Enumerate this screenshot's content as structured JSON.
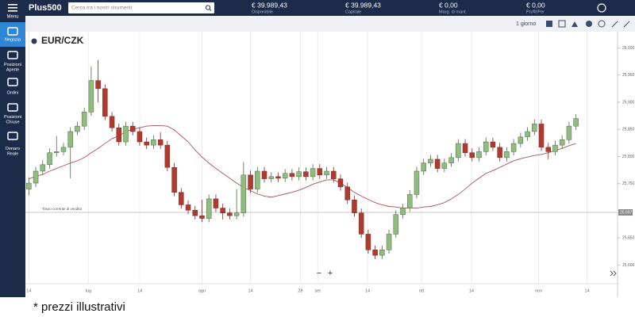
{
  "header": {
    "logo": "Plus500",
    "search_placeholder": "Cerca tra i nostri strumenti",
    "stats": [
      {
        "value": "€ 39.989,43",
        "label": "Disponibile"
      },
      {
        "value": "€ 39.989,43",
        "label": "Capitale"
      },
      {
        "value": "€ 0,00",
        "label": "Marg. di mant."
      },
      {
        "value": "€ 0,00",
        "label": "Profit/Per"
      }
    ]
  },
  "sidebar": {
    "menu": "Menu",
    "items": [
      "Negozia",
      "Posizioni Aperte",
      "Ordini",
      "Posizioni Chiuse",
      "Denaro Reale"
    ]
  },
  "toolbar": {
    "period": "1 giorno"
  },
  "zoom": {
    "minus": "−",
    "plus": "+"
  },
  "footnote": "* prezzi illustrativi",
  "chart_data": {
    "type": "candlestick",
    "title": "EUR/CZK",
    "up_color": "#8fbc7f",
    "down_color": "#b03a2e",
    "xlim": [
      -0.5,
      85
    ],
    "ylim": [
      25.57,
      26.03
    ],
    "grid_x": true,
    "xticks": [
      {
        "value": 0,
        "label": "14"
      },
      {
        "value": 8.6,
        "label": "lug"
      },
      {
        "value": 16,
        "label": "14"
      },
      {
        "value": 25,
        "label": "ago"
      },
      {
        "value": 32,
        "label": "14"
      },
      {
        "value": 39.2,
        "label": "28"
      },
      {
        "value": 41.7,
        "label": "set"
      },
      {
        "value": 48.9,
        "label": "14"
      },
      {
        "value": 56.7,
        "label": "ott"
      },
      {
        "value": 63.9,
        "label": "14"
      },
      {
        "value": 73.6,
        "label": "nov"
      },
      {
        "value": 80.6,
        "label": "14"
      }
    ],
    "yticks": [
      {
        "value": 25.6,
        "label": "25,600"
      },
      {
        "value": 25.65,
        "label": "25,650"
      },
      {
        "value": 25.75,
        "label": "25,750"
      },
      {
        "value": 25.8,
        "label": "25,800"
      },
      {
        "value": 25.85,
        "label": "25,850"
      },
      {
        "value": 25.9,
        "label": "25,900"
      },
      {
        "value": 25.95,
        "label": "25,950"
      },
      {
        "value": 26,
        "label": "26,000"
      }
    ],
    "current_price": {
      "value": 25.697,
      "label": "25,697",
      "name": "Tasso corrente di vendita"
    },
    "ohlc": [
      [
        25.74,
        25.762,
        25.728,
        25.751
      ],
      [
        25.751,
        25.781,
        25.744,
        25.773
      ],
      [
        25.773,
        25.793,
        25.766,
        25.785
      ],
      [
        25.785,
        25.815,
        25.778,
        25.807
      ],
      [
        25.807,
        25.838,
        25.8,
        25.809
      ],
      [
        25.809,
        25.825,
        25.802,
        25.817
      ],
      [
        25.817,
        25.854,
        25.76,
        25.846
      ],
      [
        25.846,
        25.864,
        25.839,
        25.856
      ],
      [
        25.856,
        25.89,
        25.849,
        25.882
      ],
      [
        25.882,
        25.966,
        25.875,
        25.94
      ],
      [
        25.94,
        25.978,
        25.9,
        25.925
      ],
      [
        25.925,
        25.933,
        25.867,
        25.874
      ],
      [
        25.874,
        25.882,
        25.846,
        25.853
      ],
      [
        25.853,
        25.861,
        25.82,
        25.827
      ],
      [
        25.827,
        25.864,
        25.82,
        25.856
      ],
      [
        25.856,
        25.864,
        25.839,
        25.846
      ],
      [
        25.846,
        25.854,
        25.82,
        25.827
      ],
      [
        25.827,
        25.835,
        25.814,
        25.821
      ],
      [
        25.821,
        25.839,
        25.814,
        25.831
      ],
      [
        25.831,
        25.845,
        25.814,
        25.821
      ],
      [
        25.821,
        25.829,
        25.773,
        25.78
      ],
      [
        25.78,
        25.788,
        25.727,
        25.734
      ],
      [
        25.734,
        25.742,
        25.704,
        25.711
      ],
      [
        25.711,
        25.719,
        25.694,
        25.701
      ],
      [
        25.701,
        25.709,
        25.684,
        25.691
      ],
      [
        25.691,
        25.72,
        25.679,
        25.686
      ],
      [
        25.686,
        25.73,
        25.679,
        25.722
      ],
      [
        25.722,
        25.73,
        25.698,
        25.705
      ],
      [
        25.705,
        25.713,
        25.684,
        25.696
      ],
      [
        25.696,
        25.704,
        25.684,
        25.691
      ],
      [
        25.691,
        25.74,
        25.684,
        25.696
      ],
      [
        25.696,
        25.79,
        25.689,
        25.766
      ],
      [
        25.766,
        25.774,
        25.733,
        25.74
      ],
      [
        25.74,
        25.781,
        25.733,
        25.773
      ],
      [
        25.773,
        25.781,
        25.752,
        25.759
      ],
      [
        25.759,
        25.771,
        25.752,
        25.763
      ],
      [
        25.763,
        25.771,
        25.753,
        25.76
      ],
      [
        25.76,
        25.777,
        25.753,
        25.769
      ],
      [
        25.769,
        25.777,
        25.756,
        25.763
      ],
      [
        25.763,
        25.78,
        25.756,
        25.772
      ],
      [
        25.772,
        25.78,
        25.756,
        25.763
      ],
      [
        25.763,
        25.786,
        25.756,
        25.778
      ],
      [
        25.778,
        25.786,
        25.759,
        25.766
      ],
      [
        25.766,
        25.781,
        25.759,
        25.773
      ],
      [
        25.773,
        25.781,
        25.752,
        25.759
      ],
      [
        25.759,
        25.767,
        25.737,
        25.744
      ],
      [
        25.744,
        25.752,
        25.713,
        25.72
      ],
      [
        25.72,
        25.728,
        25.689,
        25.696
      ],
      [
        25.696,
        25.704,
        25.65,
        25.657
      ],
      [
        25.657,
        25.665,
        25.621,
        25.628
      ],
      [
        25.628,
        25.636,
        25.611,
        25.618
      ],
      [
        25.618,
        25.636,
        25.611,
        25.628
      ],
      [
        25.628,
        25.665,
        25.621,
        25.657
      ],
      [
        25.657,
        25.701,
        25.65,
        25.693
      ],
      [
        25.693,
        25.713,
        25.686,
        25.705
      ],
      [
        25.705,
        25.738,
        25.698,
        25.73
      ],
      [
        25.73,
        25.781,
        25.723,
        25.773
      ],
      [
        25.773,
        25.796,
        25.766,
        25.788
      ],
      [
        25.788,
        25.803,
        25.781,
        25.795
      ],
      [
        25.795,
        25.803,
        25.771,
        25.778
      ],
      [
        25.778,
        25.796,
        25.771,
        25.788
      ],
      [
        25.788,
        25.806,
        25.781,
        25.798
      ],
      [
        25.798,
        25.832,
        25.791,
        25.824
      ],
      [
        25.824,
        25.832,
        25.8,
        25.807
      ],
      [
        25.807,
        25.815,
        25.791,
        25.798
      ],
      [
        25.798,
        25.817,
        25.791,
        25.809
      ],
      [
        25.809,
        25.835,
        25.802,
        25.827
      ],
      [
        25.827,
        25.835,
        25.81,
        25.817
      ],
      [
        25.817,
        25.825,
        25.791,
        25.798
      ],
      [
        25.798,
        25.817,
        25.791,
        25.809
      ],
      [
        25.809,
        25.832,
        25.802,
        25.824
      ],
      [
        25.824,
        25.844,
        25.817,
        25.836
      ],
      [
        25.836,
        25.854,
        25.829,
        25.846
      ],
      [
        25.846,
        25.868,
        25.839,
        25.86
      ],
      [
        25.86,
        25.868,
        25.81,
        25.817
      ],
      [
        25.817,
        25.825,
        25.795,
        25.809
      ],
      [
        25.809,
        25.829,
        25.802,
        25.821
      ],
      [
        25.821,
        25.839,
        25.814,
        25.831
      ],
      [
        25.831,
        25.864,
        25.824,
        25.856
      ],
      [
        25.856,
        25.878,
        25.849,
        25.87
      ]
    ],
    "ma": {
      "color": "#a8525e",
      "values": [
        25.759,
        25.763,
        25.767,
        25.773,
        25.778,
        25.783,
        25.788,
        25.792,
        25.798,
        25.807,
        25.815,
        25.824,
        25.833,
        25.838,
        25.846,
        25.85,
        25.853,
        25.856,
        25.857,
        25.857,
        25.856,
        25.849,
        25.838,
        25.827,
        25.812,
        25.799,
        25.788,
        25.778,
        25.769,
        25.76,
        25.751,
        25.743,
        25.737,
        25.731,
        25.727,
        25.725,
        25.728,
        25.731,
        25.734,
        25.738,
        25.743,
        25.749,
        25.753,
        25.757,
        25.757,
        25.751,
        25.743,
        25.734,
        25.727,
        25.721,
        25.715,
        25.711,
        25.708,
        25.707,
        25.705,
        25.705,
        25.705,
        25.707,
        25.708,
        25.711,
        25.715,
        25.722,
        25.73,
        25.74,
        25.751,
        25.76,
        25.769,
        25.774,
        25.78,
        25.786,
        25.792,
        25.796,
        25.799,
        25.802,
        25.804,
        25.807,
        25.811,
        25.815,
        25.82,
        25.824
      ]
    }
  }
}
